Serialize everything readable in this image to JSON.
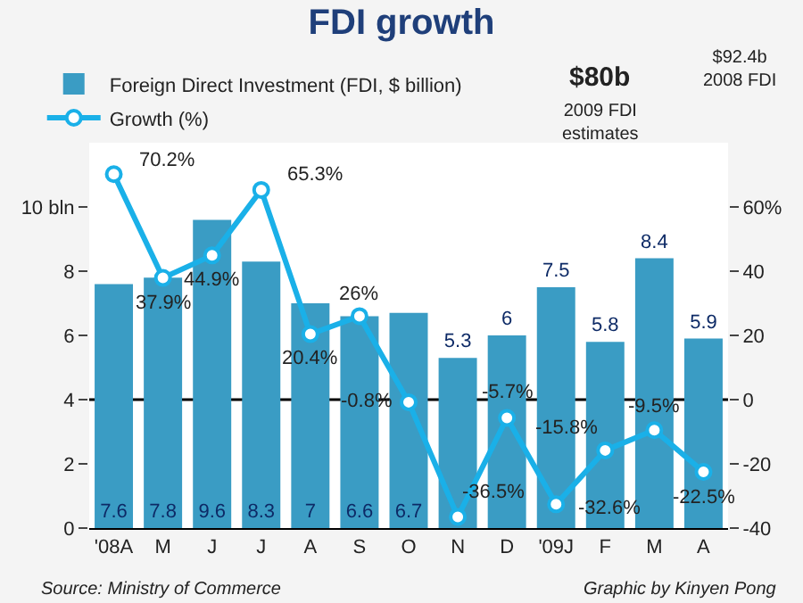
{
  "chart_data": {
    "type": "bar",
    "title": "FDI growth",
    "categories": [
      "'08A",
      "M",
      "J",
      "J",
      "A",
      "S",
      "O",
      "N",
      "D",
      "'09J",
      "F",
      "M",
      "A"
    ],
    "series": [
      {
        "name": "Foreign Direct Investment (FDI, $ billion)",
        "color": "#3a9cc4",
        "values": [
          7.6,
          7.8,
          9.6,
          8.3,
          7,
          6.6,
          6.7,
          5.3,
          6,
          7.5,
          5.8,
          8.4,
          5.9
        ],
        "value_labels": [
          "7.6",
          "7.8",
          "9.6",
          "8.3",
          "7",
          "6.6",
          "6.7",
          "5.3",
          "6",
          "7.5",
          "5.8",
          "8.4",
          "5.9"
        ]
      },
      {
        "name": "Growth (%)",
        "type": "line",
        "axis": "y2",
        "color": "#1ab0e8",
        "marker": "circle",
        "values": [
          70.2,
          37.9,
          44.9,
          65.3,
          20.4,
          26,
          -0.8,
          -36.5,
          -5.7,
          -32.6,
          -15.8,
          -9.5,
          -22.5
        ],
        "value_labels": [
          "70.2%",
          "37.9%",
          "44.9%",
          "65.3%",
          "20.4%",
          "26%",
          "-0.8%",
          "-36.5%",
          "-5.7%",
          "-32.6%",
          "-15.8%",
          "-9.5%",
          "-22.5%"
        ]
      }
    ],
    "ylim": [
      0,
      12
    ],
    "yticks": [
      0,
      2,
      4,
      6,
      8,
      {
        "value": 10,
        "label": "10 bln"
      }
    ],
    "y2lim": [
      -40,
      80
    ],
    "y2ticks": [
      -40,
      -20,
      0,
      20,
      40,
      {
        "value": 60,
        "label": "60%"
      }
    ],
    "ref_lines": [
      {
        "axis": "y2",
        "value": 0,
        "color": "#000000"
      }
    ],
    "grid": false,
    "legend": "top left",
    "annotations": [
      "$80b",
      "2009 FDI estimates",
      "$92.4b 2008 FDI",
      "Source: Ministry of Commerce",
      "Graphic by Kinyen Pong"
    ]
  }
}
